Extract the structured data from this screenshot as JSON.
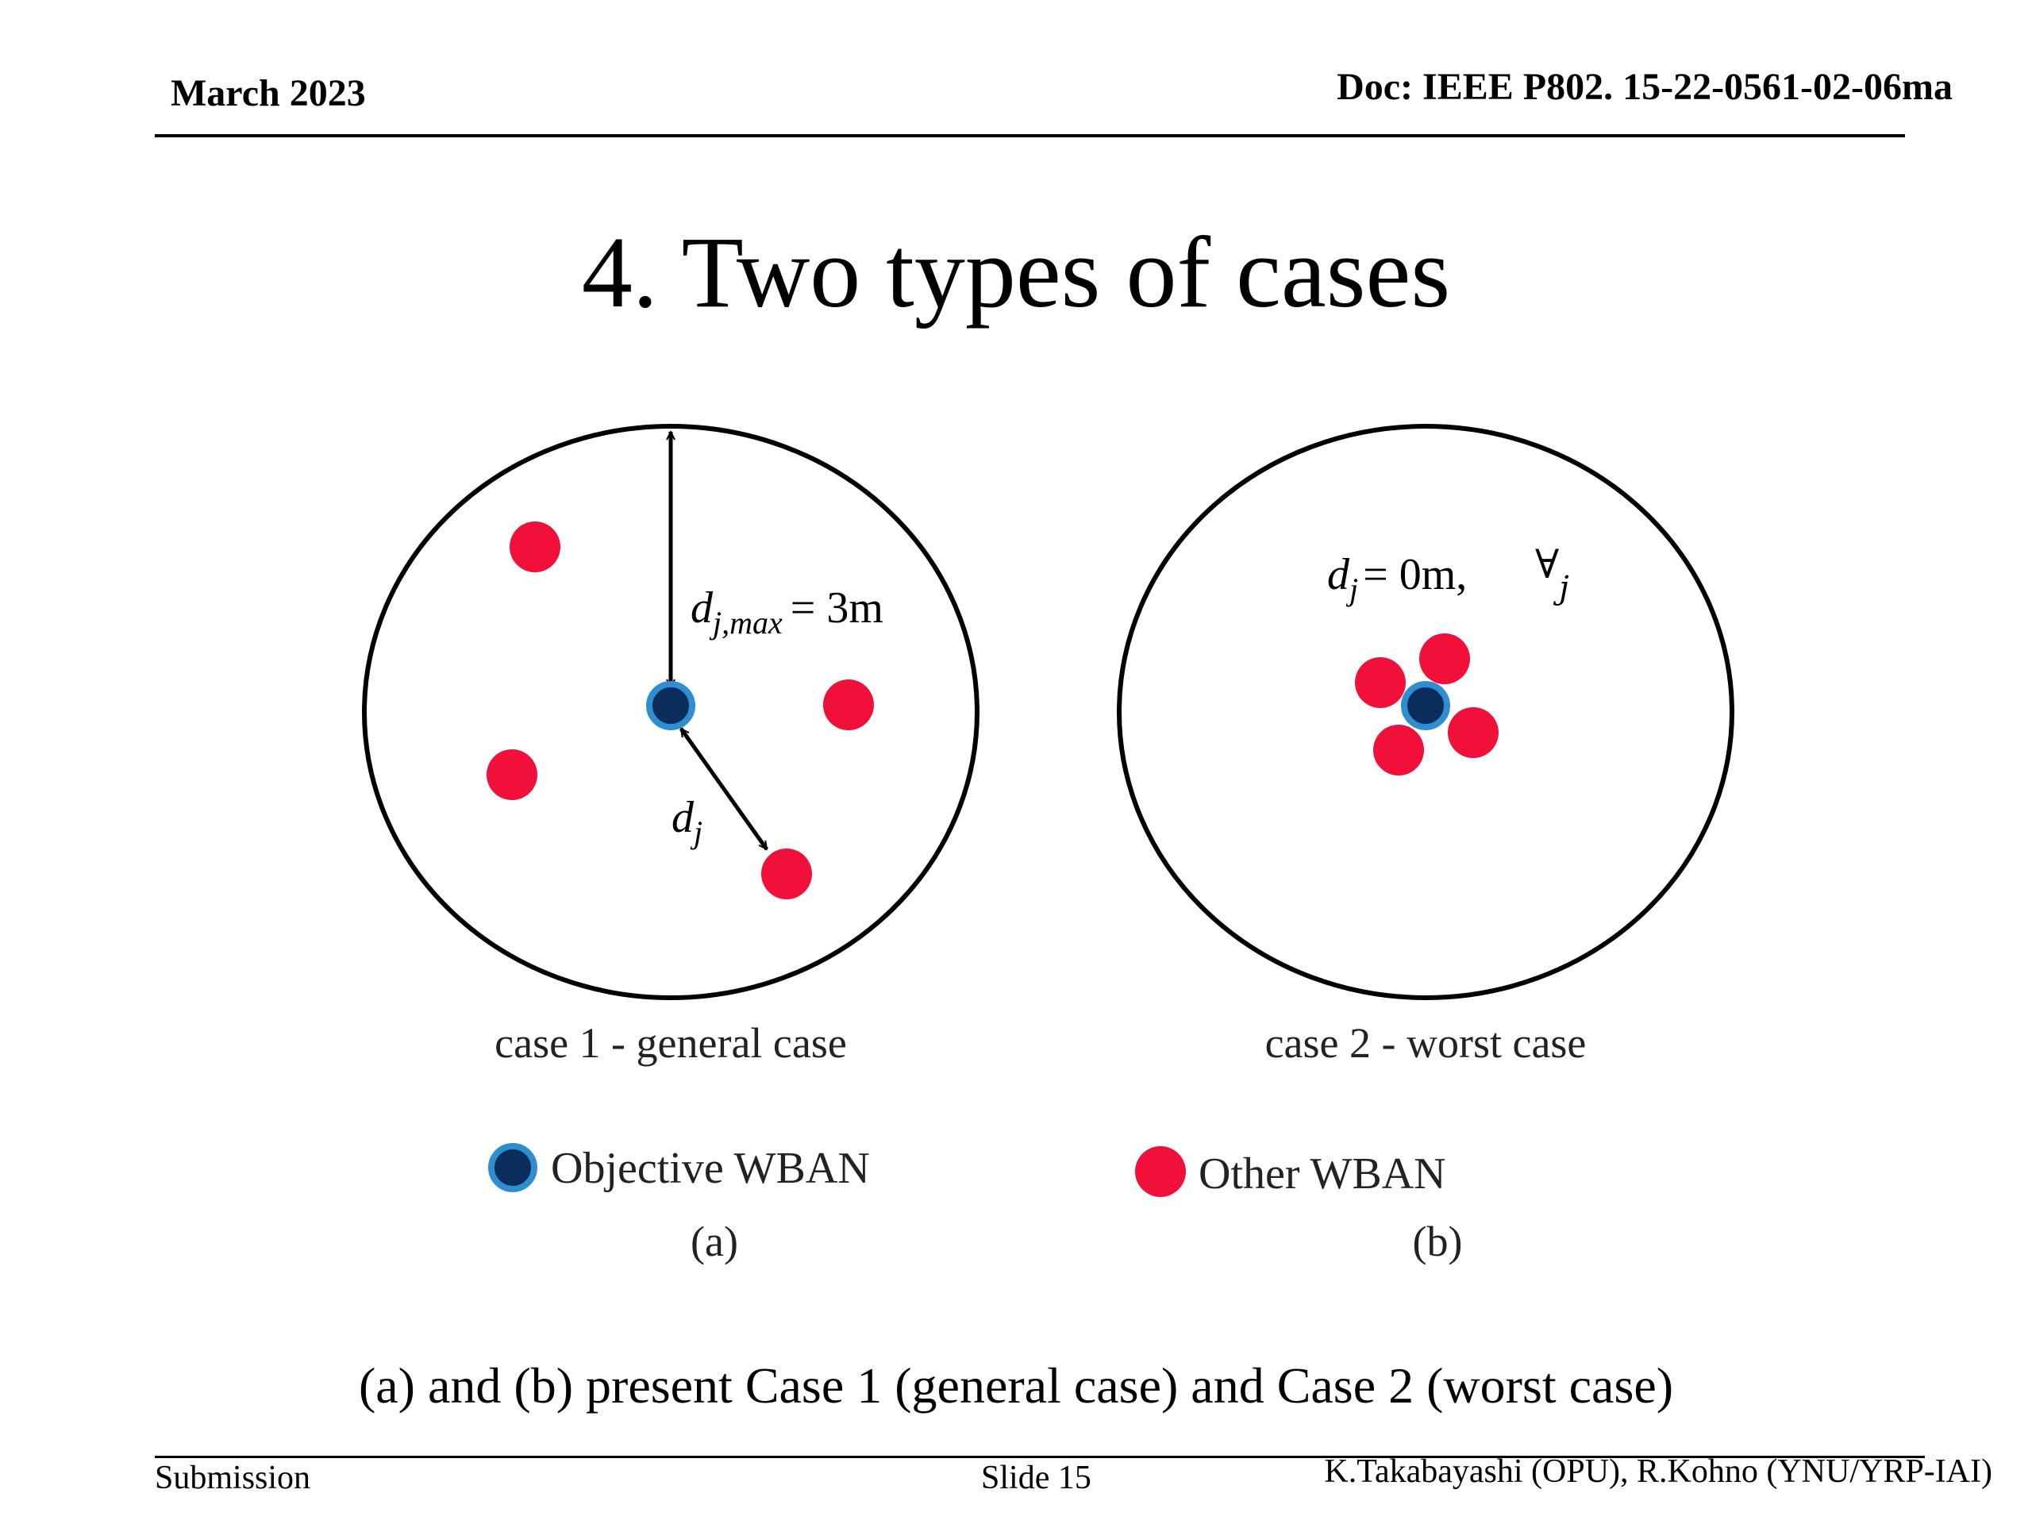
{
  "header": {
    "date": "March 2023",
    "doc_id": "Doc: IEEE P802. 15-22-0561-02-06ma"
  },
  "slide": {
    "title": "4. Two types of cases",
    "note": "(a) and (b) present Case 1 (general case) and Case 2 (worst case)"
  },
  "diagram": {
    "colors": {
      "objective": "#0b2d5c",
      "objective_ring": "#2f8ed0",
      "other": "#f0103a",
      "line": "#000000"
    },
    "case1": {
      "caption": "case 1 - general case",
      "max_distance": {
        "symbol": "d",
        "subscript": "j,max",
        "equals": "= 3m"
      },
      "distance": {
        "symbol": "d",
        "subscript": "j"
      }
    },
    "case2": {
      "caption": "case 2 - worst case",
      "distance": {
        "symbol": "d",
        "subscript": "j",
        "equals": "= 0m,"
      },
      "forall": {
        "symbol": "∀",
        "subscript": "j"
      }
    },
    "legend": {
      "objective": "Objective WBAN",
      "other": "Other WBAN",
      "label_a": "(a)",
      "label_b": "(b)"
    }
  },
  "footer": {
    "left": "Submission",
    "center": "Slide 15",
    "right": "K.Takabayashi (OPU), R.Kohno (YNU/YRP-IAI)"
  }
}
